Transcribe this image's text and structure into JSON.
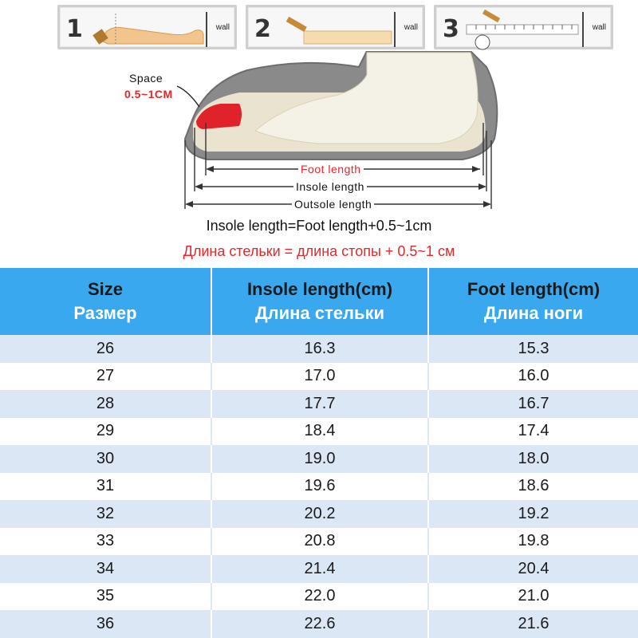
{
  "steps": [
    {
      "number": "1",
      "wall_label": "wall"
    },
    {
      "number": "2",
      "wall_label": "wall"
    },
    {
      "number": "3",
      "wall_label": "wall"
    }
  ],
  "diagram": {
    "space_label": "Space",
    "space_value": "0.5~1CM",
    "foot_length_label": "Foot length",
    "insole_length_label": "Insole length",
    "outsole_length_label": "Outsole length",
    "colors": {
      "accent_red": "#e8262a",
      "table_header_blue": "#3aa8ee",
      "row_stripe": "#dbe7f5"
    }
  },
  "formula": {
    "en": "Insole length=Foot length+0.5~1cm",
    "ru": "Длина стельки = длина стопы + 0.5~1 см"
  },
  "table": {
    "headers": [
      {
        "en": "Size",
        "ru": "Размер"
      },
      {
        "en": "Insole length(cm)",
        "ru": "Длина стельки"
      },
      {
        "en": "Foot length(cm)",
        "ru": "Длина ноги"
      }
    ],
    "rows": [
      [
        "26",
        "16.3",
        "15.3"
      ],
      [
        "27",
        "17.0",
        "16.0"
      ],
      [
        "28",
        "17.7",
        "16.7"
      ],
      [
        "29",
        "18.4",
        "17.4"
      ],
      [
        "30",
        "19.0",
        "18.0"
      ],
      [
        "31",
        "19.6",
        "18.6"
      ],
      [
        "32",
        "20.2",
        "19.2"
      ],
      [
        "33",
        "20.8",
        "19.8"
      ],
      [
        "34",
        "21.4",
        "20.4"
      ],
      [
        "35",
        "22.0",
        "21.0"
      ],
      [
        "36",
        "22.6",
        "21.6"
      ]
    ]
  }
}
